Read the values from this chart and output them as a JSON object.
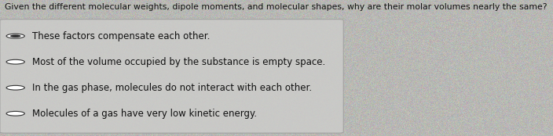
{
  "question": "Given the different molecular weights, dipole moments, and molecular shapes, why are their molar volumes nearly the same?",
  "options": [
    "These factors compensate each other.",
    "Most of the volume occupied by the substance is empty space.",
    "In the gas phase, molecules do not interact with each other.",
    "Molecules of a gas have very low kinetic energy."
  ],
  "selected_index": 0,
  "bg_color": "#b8b8b4",
  "box_bg_color": "#ccccca",
  "box_edge_color": "#999999",
  "question_color": "#111111",
  "option_color": "#111111",
  "question_fontsize": 7.8,
  "option_fontsize": 8.5,
  "selected_fill_color": "#222222",
  "radio_edge_color": "#333333",
  "radio_bg_color": "#c8c8c5"
}
